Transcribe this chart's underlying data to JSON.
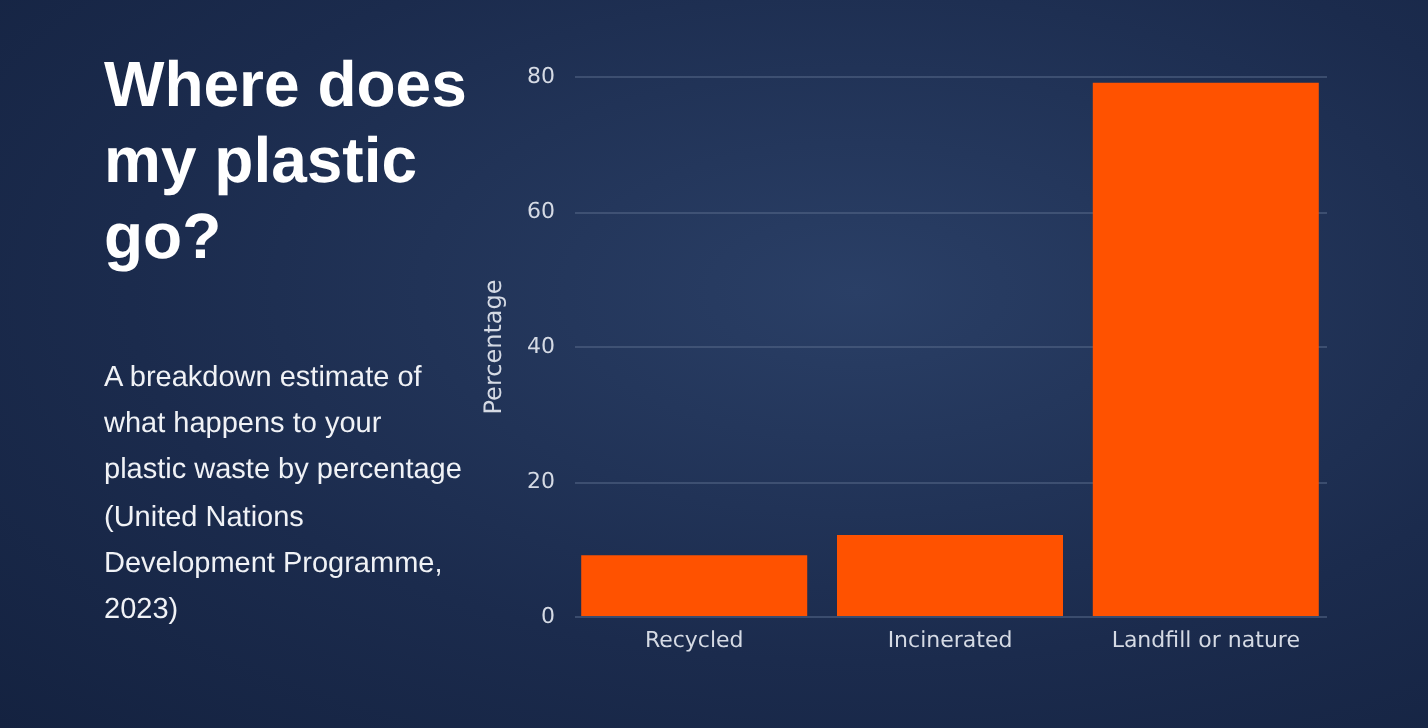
{
  "chart_data": {
    "type": "bar",
    "title": "Where does my plastic go?",
    "subtitle": "A breakdown estimate of what happens to your plastic waste by percentage (United Nations Development Programme, 2023)",
    "ylabel": "Percentage",
    "categories": [
      "Recycled",
      "Incinerated",
      "Landfill or nature"
    ],
    "values": [
      9,
      12,
      79
    ],
    "color": "#ff5200",
    "ylim": [
      0,
      80
    ],
    "yticks": [
      0,
      20,
      40,
      60,
      80
    ],
    "grid": "y"
  }
}
